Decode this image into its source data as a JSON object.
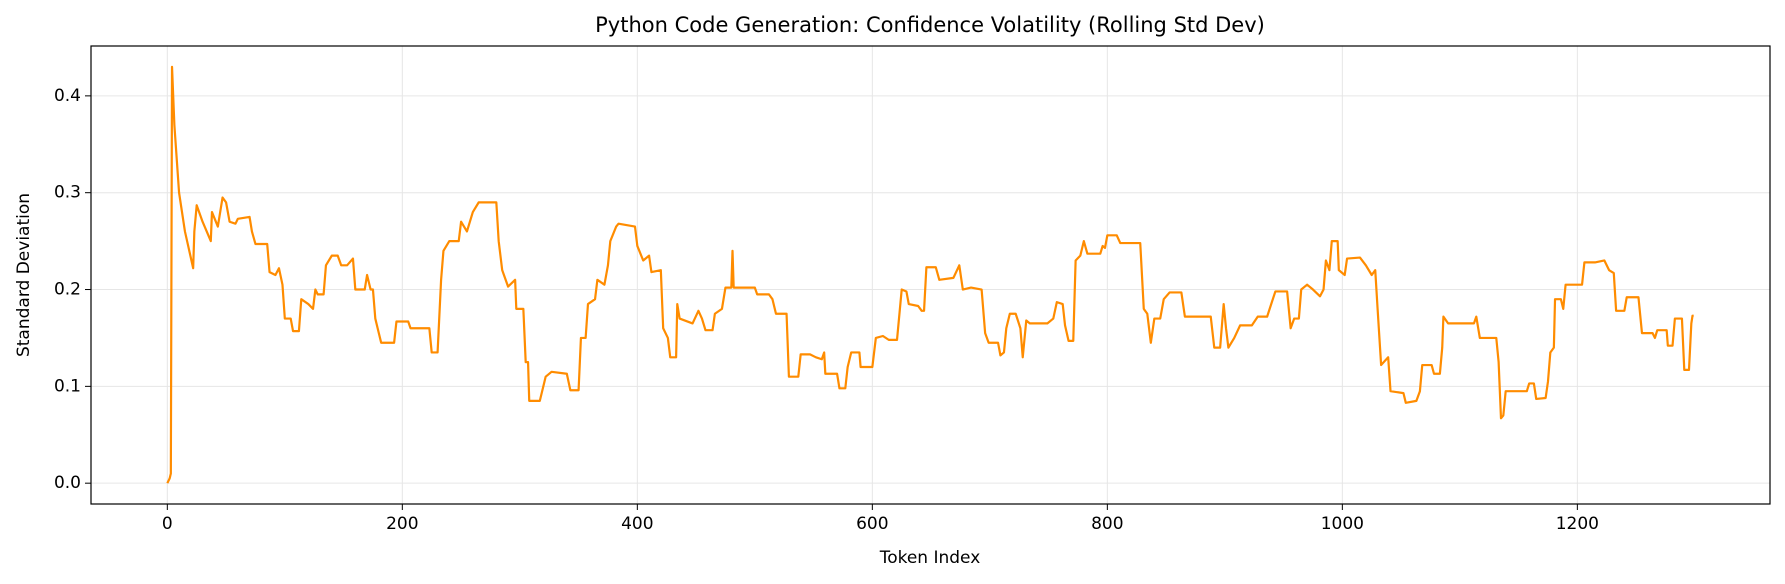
{
  "chart_data": {
    "type": "line",
    "title": "Python Code Generation: Confidence Volatility (Rolling Std Dev)",
    "x_label": "Token Index",
    "y_label": "Standard Deviation",
    "color": "#ff8c00",
    "grid": true,
    "xlim": [
      -64.95,
      1363.95
    ],
    "ylim": [
      -0.0215,
      0.4515
    ],
    "xticks": [
      0,
      200,
      400,
      600,
      800,
      1000,
      1200
    ],
    "yticks": [
      {
        "value": 0,
        "label": "0.0"
      },
      0.1,
      0.2,
      0.3,
      0.4
    ],
    "x": [
      0,
      2,
      3,
      4,
      6,
      10,
      15,
      22,
      23,
      25,
      30,
      37,
      38,
      43,
      47,
      50,
      53,
      58,
      60,
      70,
      72,
      75,
      85,
      87,
      92,
      95,
      98,
      100,
      105,
      107,
      112,
      114,
      120,
      124,
      126,
      128,
      133,
      135,
      140,
      145,
      148,
      153,
      158,
      160,
      168,
      170,
      173,
      175,
      177,
      180,
      182,
      193,
      195,
      205,
      207,
      223,
      225,
      230,
      233,
      235,
      240,
      248,
      250,
      255,
      260,
      265,
      280,
      282,
      285,
      290,
      296,
      297,
      303,
      305,
      307,
      308,
      317,
      322,
      327,
      340,
      343,
      350,
      352,
      356,
      358,
      364,
      366,
      372,
      375,
      377,
      382,
      384,
      398,
      400,
      405,
      410,
      412,
      420,
      422,
      426,
      428,
      433,
      434,
      436,
      447,
      452,
      455,
      458,
      464,
      466,
      472,
      475,
      480,
      481,
      482,
      500,
      502,
      512,
      515,
      518,
      527,
      529,
      537,
      539,
      547,
      552,
      557,
      559,
      560,
      570,
      572,
      577,
      579,
      582,
      589,
      590,
      600,
      603,
      609,
      614,
      621,
      625,
      629,
      631,
      639,
      642,
      644,
      646,
      654,
      657,
      669,
      674,
      677,
      684,
      693,
      696,
      699,
      707,
      709,
      712,
      714,
      717,
      722,
      726,
      728,
      731,
      734,
      749,
      754,
      757,
      762,
      764,
      767,
      771,
      773,
      777,
      780,
      783,
      794,
      796,
      798,
      800,
      808,
      811,
      828,
      831,
      834,
      837,
      840,
      845,
      848,
      853,
      863,
      866,
      888,
      891,
      896,
      899,
      901,
      903,
      908,
      913,
      923,
      928,
      936,
      940,
      943,
      953,
      956,
      959,
      963,
      965,
      970,
      975,
      981,
      984,
      986,
      989,
      991,
      996,
      997,
      1002,
      1004,
      1015,
      1020,
      1025,
      1028,
      1030,
      1033,
      1039,
      1041,
      1052,
      1054,
      1063,
      1066,
      1068,
      1076,
      1078,
      1083,
      1085,
      1086,
      1090,
      1112,
      1114,
      1117,
      1131,
      1133,
      1135,
      1137,
      1139,
      1157,
      1159,
      1163,
      1165,
      1173,
      1175,
      1177,
      1180,
      1181,
      1186,
      1188,
      1190,
      1204,
      1206,
      1215,
      1223,
      1227,
      1231,
      1233,
      1240,
      1242,
      1252,
      1255,
      1264,
      1266,
      1268,
      1276,
      1277,
      1281,
      1283,
      1289,
      1291,
      1295,
      1297,
      1298,
      1299
    ],
    "values": [
      0,
      0.005,
      0.01,
      0.43,
      0.37,
      0.3,
      0.26,
      0.222,
      0.26,
      0.287,
      0.27,
      0.25,
      0.28,
      0.265,
      0.295,
      0.29,
      0.27,
      0.268,
      0.273,
      0.275,
      0.26,
      0.247,
      0.247,
      0.218,
      0.215,
      0.222,
      0.205,
      0.17,
      0.17,
      0.157,
      0.157,
      0.19,
      0.185,
      0.18,
      0.2,
      0.195,
      0.195,
      0.225,
      0.235,
      0.235,
      0.225,
      0.225,
      0.232,
      0.2,
      0.2,
      0.215,
      0.2,
      0.2,
      0.17,
      0.155,
      0.145,
      0.145,
      0.167,
      0.167,
      0.16,
      0.16,
      0.135,
      0.135,
      0.21,
      0.24,
      0.25,
      0.25,
      0.27,
      0.26,
      0.28,
      0.29,
      0.29,
      0.25,
      0.22,
      0.203,
      0.21,
      0.18,
      0.18,
      0.125,
      0.125,
      0.085,
      0.085,
      0.11,
      0.115,
      0.113,
      0.096,
      0.096,
      0.15,
      0.15,
      0.185,
      0.19,
      0.21,
      0.205,
      0.225,
      0.25,
      0.265,
      0.268,
      0.265,
      0.245,
      0.23,
      0.235,
      0.218,
      0.22,
      0.16,
      0.15,
      0.13,
      0.13,
      0.185,
      0.17,
      0.165,
      0.178,
      0.17,
      0.158,
      0.158,
      0.175,
      0.18,
      0.202,
      0.202,
      0.24,
      0.202,
      0.202,
      0.195,
      0.195,
      0.19,
      0.175,
      0.175,
      0.11,
      0.11,
      0.133,
      0.133,
      0.13,
      0.128,
      0.135,
      0.113,
      0.113,
      0.098,
      0.098,
      0.12,
      0.135,
      0.135,
      0.12,
      0.12,
      0.15,
      0.152,
      0.148,
      0.148,
      0.2,
      0.198,
      0.185,
      0.183,
      0.178,
      0.178,
      0.223,
      0.223,
      0.21,
      0.212,
      0.225,
      0.2,
      0.202,
      0.2,
      0.155,
      0.145,
      0.145,
      0.132,
      0.135,
      0.16,
      0.175,
      0.175,
      0.16,
      0.13,
      0.168,
      0.165,
      0.165,
      0.17,
      0.187,
      0.185,
      0.163,
      0.147,
      0.147,
      0.23,
      0.235,
      0.25,
      0.237,
      0.237,
      0.245,
      0.243,
      0.256,
      0.256,
      0.248,
      0.248,
      0.18,
      0.175,
      0.145,
      0.17,
      0.17,
      0.19,
      0.197,
      0.197,
      0.172,
      0.172,
      0.14,
      0.14,
      0.185,
      0.16,
      0.14,
      0.15,
      0.163,
      0.163,
      0.172,
      0.172,
      0.187,
      0.198,
      0.198,
      0.16,
      0.17,
      0.17,
      0.2,
      0.205,
      0.2,
      0.193,
      0.2,
      0.23,
      0.22,
      0.25,
      0.25,
      0.22,
      0.215,
      0.232,
      0.233,
      0.225,
      0.215,
      0.22,
      0.18,
      0.122,
      0.13,
      0.095,
      0.093,
      0.083,
      0.085,
      0.095,
      0.122,
      0.122,
      0.113,
      0.113,
      0.14,
      0.172,
      0.165,
      0.165,
      0.172,
      0.15,
      0.15,
      0.125,
      0.067,
      0.07,
      0.095,
      0.095,
      0.103,
      0.103,
      0.087,
      0.088,
      0.105,
      0.135,
      0.14,
      0.19,
      0.19,
      0.18,
      0.205,
      0.205,
      0.228,
      0.228,
      0.23,
      0.22,
      0.217,
      0.178,
      0.178,
      0.192,
      0.192,
      0.155,
      0.155,
      0.15,
      0.158,
      0.158,
      0.142,
      0.142,
      0.17,
      0.17,
      0.117,
      0.117,
      0.165,
      0.173,
      0.173
    ]
  }
}
